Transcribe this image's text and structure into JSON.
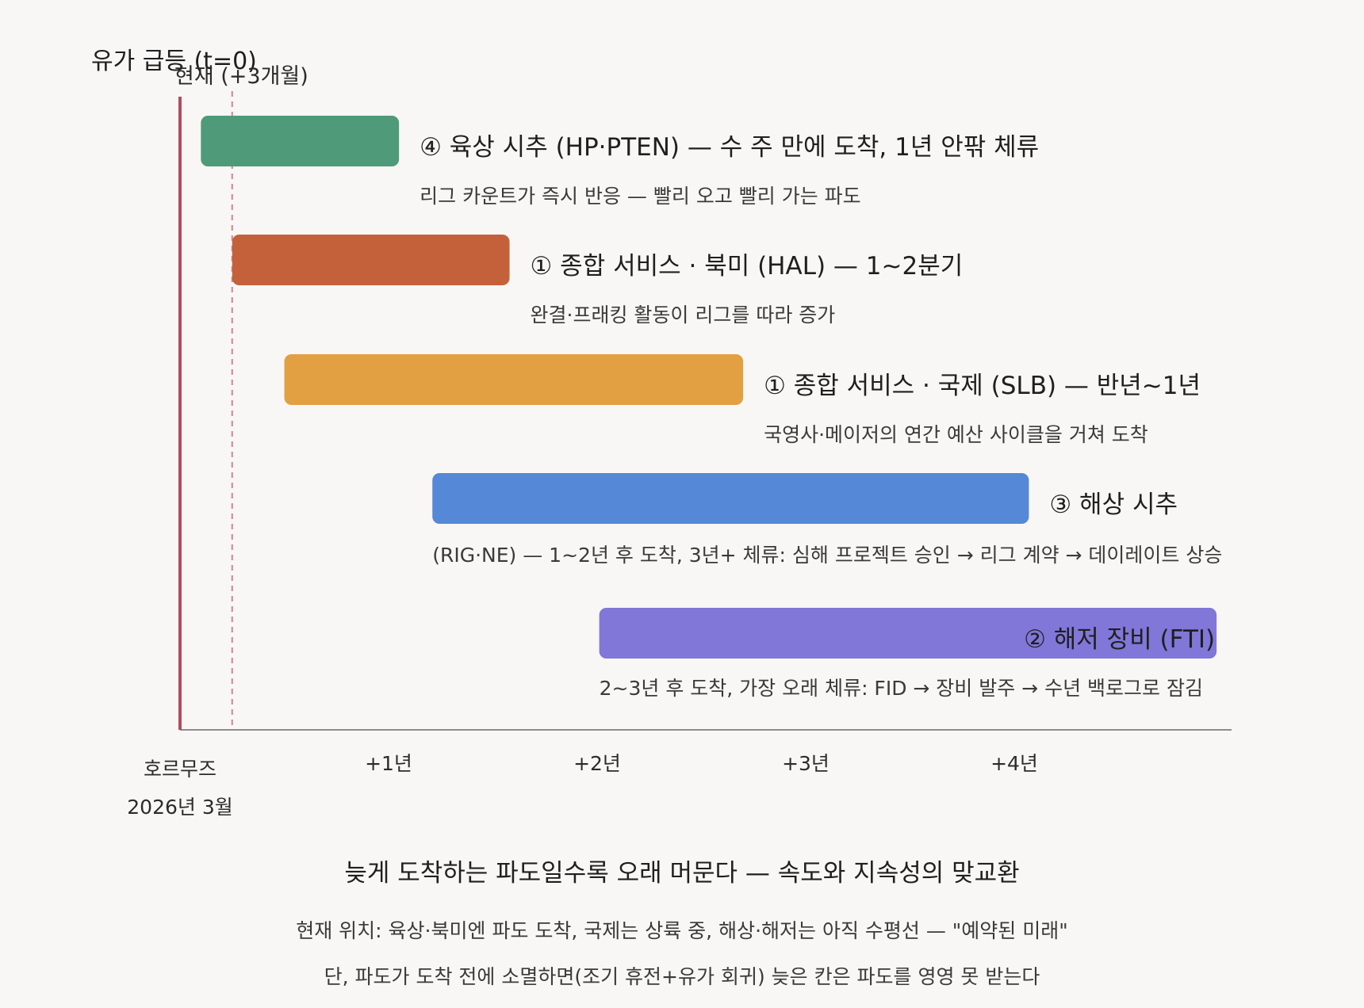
{
  "chart_data": {
    "type": "gantt",
    "x_unit": "years after 2026-03",
    "xlim": [
      -0.3,
      5.0
    ],
    "shock": {
      "label": "유가 급등 (t=0)",
      "x": 0,
      "color": "#b44a5e"
    },
    "now_marker": {
      "label": "현재 (+3개월)",
      "x": 0.25,
      "color": "#d4828f"
    },
    "x_ticks": [
      {
        "value": 0,
        "label": "호르무즈",
        "sublabel": "2026년 3월"
      },
      {
        "value": 1,
        "label": "+1년"
      },
      {
        "value": 2,
        "label": "+2년"
      },
      {
        "value": 3,
        "label": "+3년"
      },
      {
        "value": 4,
        "label": "+4년"
      }
    ],
    "bars": [
      {
        "title": "④ 육상 시추 (HP·PTEN) — 수 주 만에 도착, 1년 안팎 체류",
        "desc": "리그 카운트가 즉시 반응 — 빨리 오고 빨리 가는 파도",
        "start": 0.1,
        "end": 1.05,
        "color": "#4f9a78",
        "title_inside": false
      },
      {
        "title": "① 종합 서비스 · 북미 (HAL) — 1~2분기",
        "desc": "완결·프래킹 활동이 리그를 따라 증가",
        "start": 0.25,
        "end": 1.58,
        "color": "#c5613a",
        "title_inside": false
      },
      {
        "title": "① 종합 서비스 · 국제 (SLB) — 반년~1년",
        "desc": "국영사·메이저의 연간 예산 사이클을 거쳐 도착",
        "start": 0.5,
        "end": 2.7,
        "color": "#e2a043",
        "title_inside": false
      },
      {
        "title": "③ 해상 시추",
        "desc": "(RIG·NE) — 1~2년 후 도착, 3년+ 체류: 심해 프로젝트 승인 → 리그 계약 → 데이레이트 상승",
        "start": 1.21,
        "end": 4.07,
        "color": "#5588d6",
        "title_inside": false
      },
      {
        "title": "② 해저 장비 (FTI)",
        "desc": "2~3년 후 도착, 가장 오래 체류: FID → 장비 발주 → 수년 백로그로 잠김",
        "start": 2.01,
        "end": 4.97,
        "color": "#8077d8",
        "title_inside": true
      }
    ]
  },
  "footer": {
    "title": "늦게 도착하는 파도일수록 오래 머문다 — 속도와 지속성의 맞교환",
    "line1": "현재 위치: 육상·북미엔 파도 도착, 국제는 상륙 중, 해상·해저는 아직 수평선 — \"예약된 미래\"",
    "line2": "단, 파도가 도착 전에 소멸하면(조기 휴전+유가 회귀) 늦은 칸은 파도를 영영 못 받는다"
  }
}
